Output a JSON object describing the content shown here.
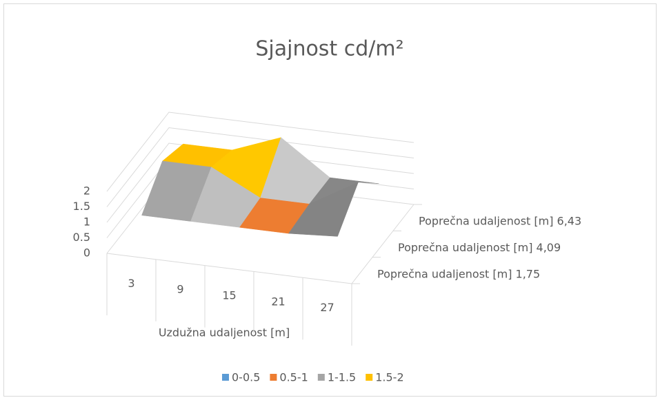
{
  "chart_data": {
    "type": "surface",
    "title": "Sjajnost cd/m²",
    "x_label": "Uzdužna udaljenost [m]",
    "categories": [
      "3",
      "9",
      "15",
      "21",
      "27"
    ],
    "series": [
      {
        "name": "Poprečna udaljenost [m] 1,75",
        "values": [
          0.9,
          0.9,
          0.9,
          0.9,
          1.0
        ]
      },
      {
        "name": "Poprečna udaljenost [m] 4,09",
        "values": [
          1.8,
          1.8,
          1.0,
          1.0,
          1.9
        ]
      },
      {
        "name": "Poprečna udaljenost [m] 6,43",
        "values": [
          1.5,
          1.5,
          2.1,
          1.0,
          1.0
        ]
      }
    ],
    "zlim": [
      0,
      2
    ],
    "zticks": [
      0,
      0.5,
      1,
      1.5,
      2
    ],
    "legend": [
      {
        "label": "0-0.5",
        "color": "#5b9bd5"
      },
      {
        "label": "0.5-1",
        "color": "#ed7d31"
      },
      {
        "label": "1-1.5",
        "color": "#a5a5a5"
      },
      {
        "label": "1.5-2",
        "color": "#ffc000"
      }
    ]
  }
}
